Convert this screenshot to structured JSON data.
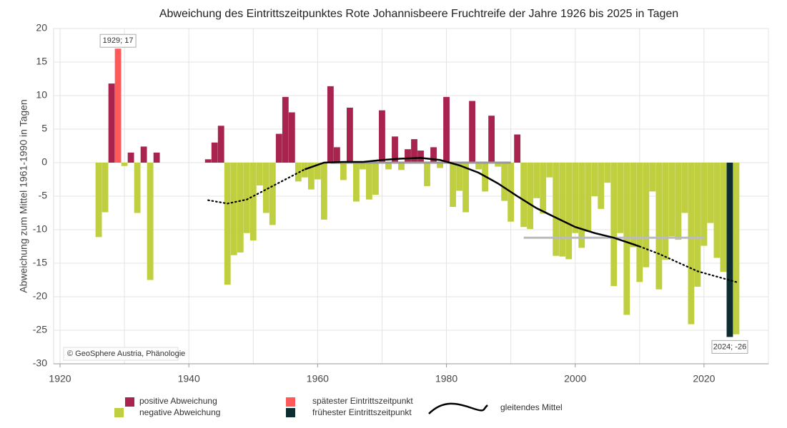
{
  "chart_data": {
    "type": "bar",
    "title": "Abweichung des Eintrittszeitpunktes Rote Johannisbeere Fruchtreife der Jahre 1926 bis 2025 in Tagen",
    "ylabel": "Abweichung zum Mittel 1961-1990 in Tagen",
    "credit": "© GeoSphere Austria, Phänologie",
    "x": [
      1926,
      1927,
      1928,
      1929,
      1930,
      1931,
      1932,
      1933,
      1934,
      1935,
      1936,
      1937,
      1938,
      1939,
      1940,
      1941,
      1942,
      1943,
      1944,
      1945,
      1946,
      1947,
      1948,
      1949,
      1950,
      1951,
      1952,
      1953,
      1954,
      1955,
      1956,
      1957,
      1958,
      1959,
      1960,
      1961,
      1962,
      1963,
      1964,
      1965,
      1966,
      1967,
      1968,
      1969,
      1970,
      1971,
      1972,
      1973,
      1974,
      1975,
      1976,
      1977,
      1978,
      1979,
      1980,
      1981,
      1982,
      1983,
      1984,
      1985,
      1986,
      1987,
      1988,
      1989,
      1990,
      1991,
      1992,
      1993,
      1994,
      1995,
      1996,
      1997,
      1998,
      1999,
      2000,
      2001,
      2002,
      2003,
      2004,
      2005,
      2006,
      2007,
      2008,
      2009,
      2010,
      2011,
      2012,
      2013,
      2014,
      2015,
      2016,
      2017,
      2018,
      2019,
      2020,
      2021,
      2022,
      2023,
      2024,
      2025
    ],
    "values": [
      -11.1,
      -7.4,
      11.8,
      17,
      -0.5,
      1.5,
      -7.5,
      2.4,
      -17.5,
      1.5,
      null,
      null,
      null,
      null,
      null,
      null,
      null,
      0.5,
      3.0,
      5.5,
      -18.2,
      -13.8,
      -13.4,
      -10.5,
      -11.6,
      -3.4,
      -7.5,
      -9.3,
      4.3,
      9.8,
      7.5,
      -2.8,
      -2.2,
      -4.0,
      -2.5,
      -8.5,
      11.4,
      2.3,
      -2.6,
      8.2,
      -5.8,
      -1.0,
      -5.5,
      -4.8,
      7.8,
      -1.0,
      3.9,
      -1.1,
      2.0,
      3.5,
      1.8,
      -3.5,
      2.3,
      -0.8,
      9.8,
      -6.6,
      -4.2,
      -7.4,
      9.2,
      -1.0,
      -4.3,
      7.0,
      -0.6,
      -5.7,
      -8.8,
      4.2,
      -9.6,
      -9.9,
      -5.3,
      -7.6,
      -2.2,
      -13.9,
      -14.0,
      -14.4,
      -10.5,
      -12.7,
      -10.3,
      -5.0,
      -6.9,
      -3.0,
      -18.4,
      -10.5,
      -22.7,
      -12.6,
      -17.8,
      -15.6,
      -4.3,
      -18.9,
      -14.5,
      -11.0,
      -11.5,
      -7.5,
      -24.1,
      -18.5,
      -12.4,
      -9.0,
      -14.2,
      -16.3,
      -26,
      -25.6
    ],
    "value_labels": [
      null,
      null,
      null,
      "1929; 17",
      null,
      null,
      null,
      null,
      null,
      null,
      null,
      null,
      null,
      null,
      null,
      null,
      null,
      null,
      null,
      null,
      null,
      null,
      null,
      null,
      null,
      null,
      null,
      null,
      null,
      null,
      null,
      null,
      null,
      null,
      null,
      null,
      null,
      null,
      null,
      null,
      null,
      null,
      null,
      null,
      null,
      null,
      null,
      null,
      null,
      null,
      null,
      null,
      null,
      null,
      null,
      null,
      null,
      null,
      null,
      null,
      null,
      null,
      null,
      null,
      null,
      null,
      null,
      null,
      null,
      null,
      null,
      null,
      null,
      null,
      null,
      null,
      null,
      null,
      null,
      null,
      null,
      null,
      null,
      null,
      null,
      null,
      null,
      null,
      null,
      null,
      null,
      null,
      null,
      null,
      null,
      null,
      null,
      null,
      "2024; -26",
      null
    ],
    "legend": [
      {
        "name": "positive Abweichung",
        "color": "#a8234e",
        "role": "positive"
      },
      {
        "name": "negative Abweichung",
        "color": "#bfcf3f",
        "role": "negative"
      },
      {
        "name": "spätester Eintrittszeitpunkt",
        "color": "#ff5a5a",
        "role": "max"
      },
      {
        "name": "frühester Eintrittszeitpunkt",
        "color": "#0d2e30",
        "role": "min"
      }
    ],
    "moving_average": {
      "name": "gleitendes Mittel",
      "color": "#000000",
      "pieces": [
        {
          "style": "dotted",
          "x": [
            1943,
            1946,
            1949,
            1952,
            1955,
            1958
          ],
          "values": [
            -5.6,
            -6.1,
            -5.5,
            -4.0,
            -2.5,
            -1.0
          ]
        },
        {
          "style": "solid",
          "x": [
            1958,
            1961,
            1964,
            1967,
            1970,
            1973,
            1976,
            1979,
            1982,
            1985,
            1988,
            1991,
            1994,
            1997,
            2000,
            2003,
            2006,
            2010
          ],
          "values": [
            -1.0,
            0,
            0.1,
            0.1,
            0.4,
            0.6,
            0.7,
            0.4,
            -0.4,
            -1.5,
            -3.1,
            -5.0,
            -6.8,
            -8.2,
            -9.6,
            -10.5,
            -11.2,
            -12.5
          ]
        },
        {
          "style": "dotted",
          "x": [
            2010,
            2013,
            2016,
            2019,
            2022,
            2025
          ],
          "values": [
            -12.5,
            -13.6,
            -14.9,
            -16.2,
            -17.0,
            -17.8
          ]
        }
      ]
    },
    "reference_lines": [
      {
        "x": [
          1962,
          1990
        ],
        "value": 0,
        "color": "#999999"
      },
      {
        "x": [
          1992,
          2020
        ],
        "value": -11.2,
        "color": "#bbbbbb"
      }
    ],
    "xlim": [
      1919,
      2030
    ],
    "xticks": [
      1920,
      1940,
      1960,
      1980,
      2000,
      2020
    ],
    "xminor": [
      1930,
      1950,
      1970,
      1990,
      2010,
      2030
    ],
    "ylim": [
      -30,
      20
    ],
    "yticks": [
      -30,
      -25,
      -20,
      -15,
      -10,
      -5,
      0,
      5,
      10,
      15,
      20
    ],
    "grid": true
  }
}
